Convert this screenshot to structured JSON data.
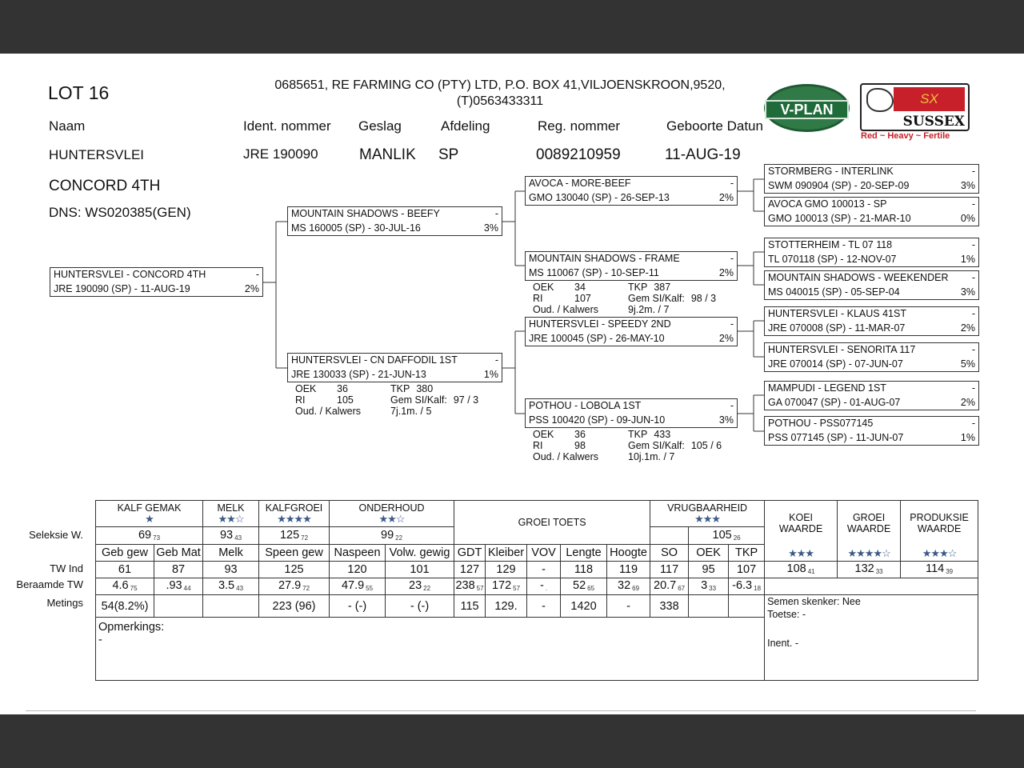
{
  "header": {
    "lot": "LOT 16",
    "breeder_line1": "0685651,  RE FARMING CO (PTY) LTD, P.O. BOX 41,VILJOENSKROON,9520,",
    "breeder_line2": "(T)0563433311",
    "labels": {
      "naam": "Naam",
      "ident": "Ident. nommer",
      "geslag": "Geslag",
      "afdeling": "Afdeling",
      "reg": "Reg. nommer",
      "geboorte": "Geboorte Datun"
    },
    "values": {
      "naam": "HUNTERSVLEI",
      "ident": "JRE 190090",
      "geslag": "MANLIK",
      "afdeling": "SP",
      "reg": "0089210959",
      "geboorte": "11-AUG-19"
    },
    "name2": "CONCORD 4TH",
    "dns": "DNS: WS020385(GEN)"
  },
  "logos": {
    "vplan": "V-PLAN",
    "sussex": "SUSSEX",
    "sussex_mark": "SX",
    "sussex_tagline": "Red ~ Heavy ~ Fertile",
    "vplan_color": "#1f6b3a",
    "sussex_red": "#c8202a"
  },
  "pedigree": [
    {
      "id": "subject",
      "name": "HUNTERSVLEI -  CONCORD 4TH",
      "flag": "-",
      "reg": "JRE 190090 (SP) - 11-AUG-19",
      "pct": "2%"
    },
    {
      "id": "sire",
      "name": "MOUNTAIN SHADOWS -  BEEFY",
      "flag": "-",
      "reg": "MS  160005 (SP) - 30-JUL-16",
      "pct": "3%"
    },
    {
      "id": "dam",
      "name": "HUNTERSVLEI -  CN DAFFODIL 1ST",
      "flag": "-",
      "reg": "JRE 130033 (SP) - 21-JUN-13",
      "pct": "1%",
      "info": {
        "oek_label": "OEK",
        "oek": "36",
        "tkp_label": "TKP",
        "tkp": "380",
        "ri_label": "RI",
        "ri": "105",
        "gem_label": "Gem SI/Kalf:",
        "gem": "97 / 3",
        "oud_label": "Oud. / Kalwers",
        "oud": "7j.1m. / 5"
      }
    },
    {
      "id": "sire-sire",
      "name": "AVOCA -  MORE-BEEF",
      "flag": "-",
      "reg": "GMO 130040 (SP) - 26-SEP-13",
      "pct": "2%"
    },
    {
      "id": "sire-dam",
      "name": "MOUNTAIN SHADOWS -  FRAME",
      "flag": "-",
      "reg": "MS  110067 (SP) - 10-SEP-11",
      "pct": "2%",
      "info": {
        "oek_label": "OEK",
        "oek": "34",
        "tkp_label": "TKP",
        "tkp": "387",
        "ri_label": "RI",
        "ri": "107",
        "gem_label": "Gem SI/Kalf:",
        "gem": "98 / 3",
        "oud_label": "Oud. / Kalwers",
        "oud": "9j.2m. / 7"
      }
    },
    {
      "id": "dam-sire",
      "name": "HUNTERSVLEI -  SPEEDY 2ND",
      "flag": "-",
      "reg": "JRE 100045 (SP) - 26-MAY-10",
      "pct": "2%"
    },
    {
      "id": "dam-dam",
      "name": "POTHOU -  LOBOLA 1ST",
      "flag": "-",
      "reg": "PSS 100420 (SP) - 09-JUN-10",
      "pct": "3%",
      "info": {
        "oek_label": "OEK",
        "oek": "36",
        "tkp_label": "TKP",
        "tkp": "433",
        "ri_label": "RI",
        "ri": "98",
        "gem_label": "Gem SI/Kalf:",
        "gem": "105 / 6",
        "oud_label": "Oud. / Kalwers",
        "oud": "10j.1m. / 7"
      }
    },
    {
      "id": "g3-1",
      "name": "STORMBERG -  INTERLINK",
      "flag": "-",
      "reg": "SWM 090904 (SP) - 20-SEP-09",
      "pct": "3%"
    },
    {
      "id": "g3-2",
      "name": "AVOCA GMO 100013 - SP",
      "flag": "-",
      "reg": "GMO 100013 (SP) - 21-MAR-10",
      "pct": "0%"
    },
    {
      "id": "g3-3",
      "name": "STOTTERHEIM -  TL 07 118",
      "flag": "-",
      "reg": "TL  070118 (SP) - 12-NOV-07",
      "pct": "1%"
    },
    {
      "id": "g3-4",
      "name": "MOUNTAIN SHADOWS -  WEEKENDER",
      "flag": "-",
      "reg": "MS  040015 (SP) - 05-SEP-04",
      "pct": "3%"
    },
    {
      "id": "g3-5",
      "name": "HUNTERSVLEI -  KLAUS 41ST",
      "flag": "-",
      "reg": "JRE 070008 (SP) - 11-MAR-07",
      "pct": "2%"
    },
    {
      "id": "g3-6",
      "name": "HUNTERSVLEI -  SENORITA 117",
      "flag": "-",
      "reg": "JRE 070014 (SP) - 07-JUN-07",
      "pct": "5%"
    },
    {
      "id": "g3-7",
      "name": "MAMPUDI -  LEGEND 1ST",
      "flag": "-",
      "reg": "GA  070047 (SP) - 01-AUG-07",
      "pct": "2%"
    },
    {
      "id": "g3-8",
      "name": "POTHOU -  PSS077145",
      "flag": "-",
      "reg": "PSS 077145 (SP) - 11-JUN-07",
      "pct": "1%"
    }
  ],
  "table": {
    "row_labels": {
      "seleksie": "Seleksie W.",
      "tw_ind": "TW Ind",
      "beraamde": "Beraamde TW",
      "metings": "Metings"
    },
    "groups": [
      {
        "label": "KALF GEMAK",
        "stars": "★",
        "sel": "69",
        "sel_acc": "73"
      },
      {
        "label": "MELK",
        "stars": "★★☆",
        "sel": "93",
        "sel_acc": "43"
      },
      {
        "label": "KALFGROEI",
        "stars": "★★★★",
        "sel": "125",
        "sel_acc": "72"
      },
      {
        "label": "ONDERHOUD",
        "stars": "★★☆",
        "sel": "99",
        "sel_acc": "22"
      },
      {
        "label": "GROEI TOETS"
      },
      {
        "label": "VRUGBAARHEID",
        "stars": "★★★",
        "sel": "105",
        "sel_acc": "26"
      }
    ],
    "columns": [
      "Geb gew",
      "Geb Mat",
      "Melk",
      "Speen gew",
      "Naspeen",
      "Volw. gewig",
      "GDT",
      "Kleiber",
      "VOV",
      "Lengte",
      "Hoogte",
      "SO",
      "OEK",
      "TKP"
    ],
    "tw_ind": [
      "61",
      "87",
      "93",
      "125",
      "120",
      "101",
      "127",
      "129",
      "-",
      "118",
      "119",
      "117",
      "95",
      "107"
    ],
    "beraamde": [
      {
        "v": "4.6",
        "a": "75"
      },
      {
        "v": ".93",
        "a": "44"
      },
      {
        "v": "3.5",
        "a": "43"
      },
      {
        "v": "27.9",
        "a": "72"
      },
      {
        "v": "47.9",
        "a": "55"
      },
      {
        "v": "23",
        "a": "22"
      },
      {
        "v": "238",
        "a": "57"
      },
      {
        "v": "172",
        "a": "57"
      },
      {
        "v": "-",
        "a": "."
      },
      {
        "v": "52",
        "a": "65"
      },
      {
        "v": "32",
        "a": "69"
      },
      {
        "v": "20.7",
        "a": "67"
      },
      {
        "v": "3",
        "a": "33"
      },
      {
        "v": "-6.3",
        "a": "18"
      }
    ],
    "metings": [
      "54(8.2%)",
      "",
      "",
      "223  (96)",
      "-  (-)",
      "-  (-)",
      "115",
      "129.",
      "-",
      "1420",
      "-",
      "338",
      "",
      ""
    ],
    "waarde": [
      {
        "label1": "KOEI",
        "label2": "WAARDE",
        "stars": "★★★",
        "v": "108",
        "a": "41"
      },
      {
        "label1": "GROEI",
        "label2": "WAARDE",
        "stars": "★★★★☆",
        "v": "132",
        "a": "33"
      },
      {
        "label1": "PRODUKSIE",
        "label2": "WAARDE",
        "stars": "★★★☆",
        "v": "114",
        "a": "39"
      }
    ],
    "semen": "Semen skenker: Nee",
    "toetse": "Toetse: -",
    "inent": "Inent. -",
    "opmerkings_label": "Opmerkings:",
    "opmerkings": "-"
  }
}
